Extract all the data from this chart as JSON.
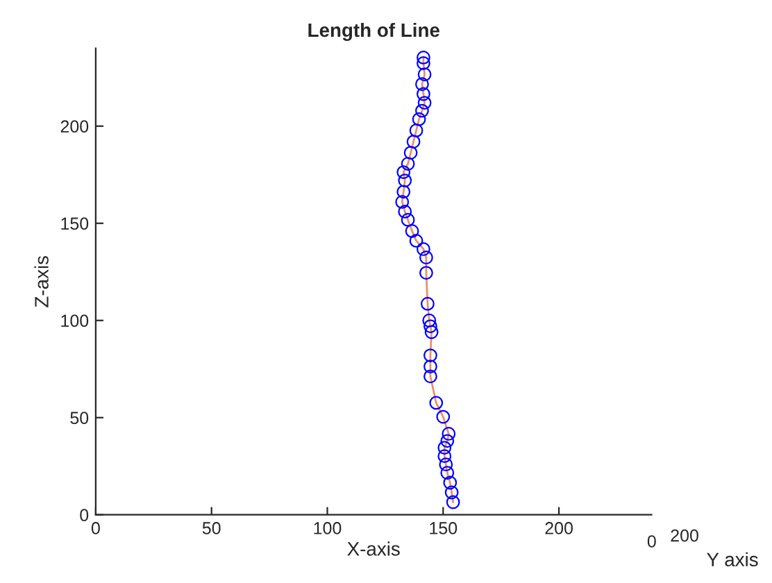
{
  "chart_data": {
    "type": "scatter",
    "title": "Length of Line",
    "xlabel": "X-axis",
    "ylabel": "Z-axis",
    "annotations": [
      "0",
      "200",
      "Y axis"
    ],
    "xlim": [
      0,
      240
    ],
    "xticks": [
      0,
      50,
      100,
      150,
      200
    ],
    "ylim": [
      0,
      240
    ],
    "yticks": [
      0,
      50,
      100,
      150,
      200
    ],
    "grid": false,
    "legend": false,
    "series": [
      {
        "type": "line",
        "color": "#e8906a",
        "marker": "none",
        "x": [
          154.3,
          153.7,
          153,
          151.8,
          151.2,
          150.6,
          150.6,
          151.8,
          152.4,
          150,
          147,
          144.5,
          144.5,
          144.5,
          145,
          144.5,
          144,
          143.3,
          142.7,
          142.7,
          141.5,
          138.4,
          136.6,
          134.8,
          133.5,
          132.3,
          132.9,
          133.5,
          132.9,
          134.8,
          136,
          137.2,
          138.4,
          139.6,
          140.9,
          142,
          141.5,
          140.9,
          142,
          141.5,
          141.5
        ],
        "values": [
          6.5,
          11.5,
          16.5,
          21.6,
          25.9,
          30.2,
          34.5,
          38,
          41.7,
          50.4,
          57.6,
          71.2,
          76.3,
          82,
          94,
          97,
          100,
          108.6,
          124.5,
          132.4,
          136.7,
          141,
          146,
          151.8,
          156,
          161,
          166.2,
          172,
          176.3,
          180.6,
          186.3,
          192,
          197.8,
          203.6,
          207.9,
          212,
          216.5,
          221.6,
          226.6,
          232.4,
          235.3
        ]
      },
      {
        "color": "#0000ff",
        "marker": "circle",
        "x": [
          154.3,
          153.7,
          153,
          151.8,
          151.2,
          150.6,
          150.6,
          151.8,
          152.4,
          150,
          147,
          144.5,
          144.5,
          144.5,
          145,
          144.5,
          144,
          143.3,
          142.7,
          142.7,
          141.5,
          138.4,
          136.6,
          134.8,
          133.5,
          132.3,
          132.9,
          133.5,
          132.9,
          134.8,
          136,
          137.2,
          138.4,
          139.6,
          140.9,
          142,
          141.5,
          140.9,
          142,
          141.5,
          141.5
        ],
        "values": [
          6.5,
          11.5,
          16.5,
          21.6,
          25.9,
          30.2,
          34.5,
          38,
          41.7,
          50.4,
          57.6,
          71.2,
          76.3,
          82,
          94,
          97,
          100,
          108.6,
          124.5,
          132.4,
          136.7,
          141,
          146,
          151.8,
          156,
          161,
          166.2,
          172,
          176.3,
          180.6,
          186.3,
          192,
          197.8,
          203.6,
          207.9,
          212,
          216.5,
          221.6,
          226.6,
          232.4,
          235.3
        ]
      }
    ]
  }
}
